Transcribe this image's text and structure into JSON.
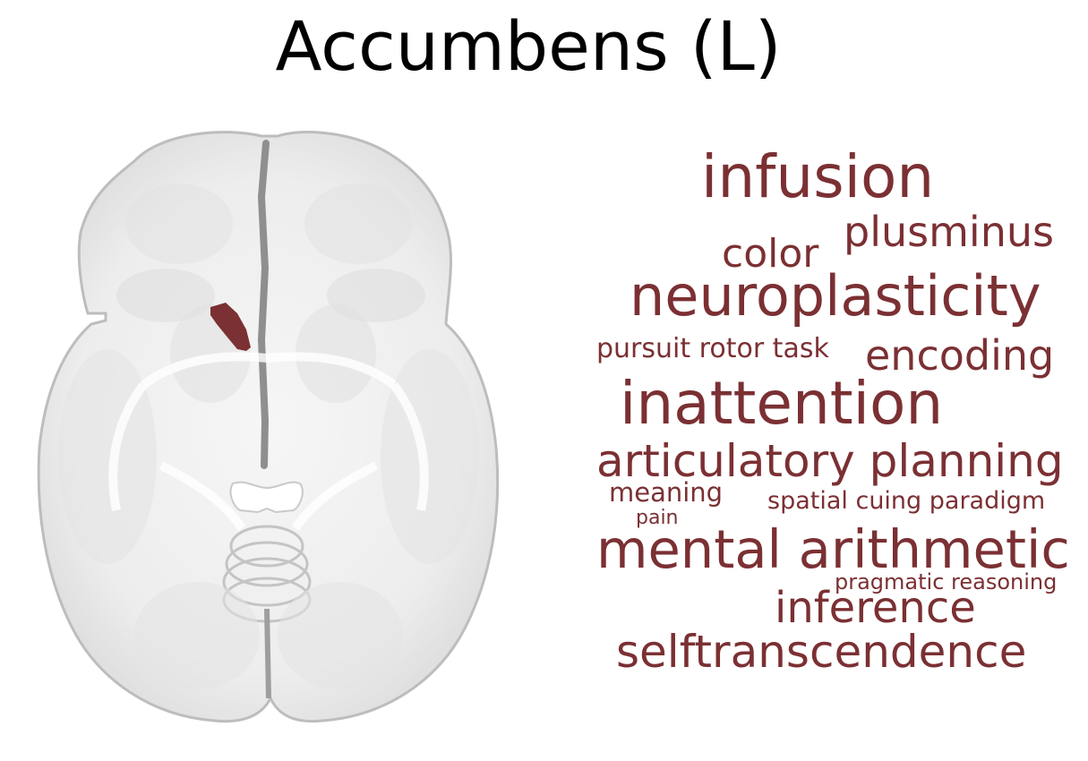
{
  "title": "Accumbens (L)",
  "region_color": "#7b3033",
  "word_color": "#7b3033",
  "words": [
    "infusion",
    "plusminus",
    "color",
    "neuroplasticity",
    "pursuit rotor task",
    "encoding",
    "inattention",
    "articulatory planning",
    "meaning",
    "spatial cuing paradigm",
    "pain",
    "mental arithmetic",
    "pragmatic reasoning",
    "inference",
    "selftranscendence"
  ]
}
